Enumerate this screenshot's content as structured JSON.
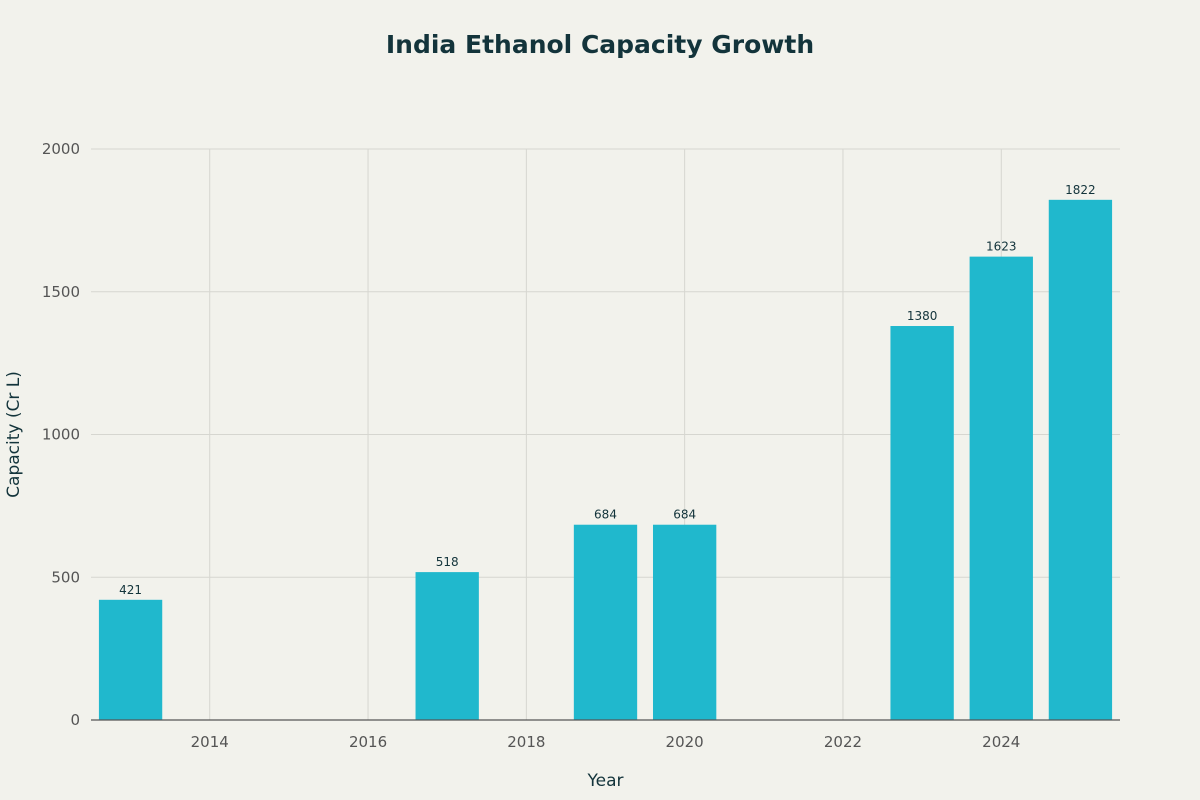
{
  "chart_data": {
    "type": "bar",
    "title": "India Ethanol Capacity Growth",
    "xlabel": "Year",
    "ylabel": "Capacity (Cr L)",
    "x": [
      2013,
      2017,
      2019,
      2020,
      2023,
      2024,
      2025
    ],
    "values": [
      421,
      518,
      684,
      684,
      1380,
      1623,
      1822
    ],
    "data_labels": [
      "421",
      "518",
      "684",
      "684",
      "1380",
      "1623",
      "1822"
    ],
    "xlim": [
      2012.5,
      2025.5
    ],
    "ylim": [
      0,
      2000
    ],
    "x_ticks": [
      2014,
      2016,
      2018,
      2020,
      2022,
      2024
    ],
    "y_ticks": [
      0,
      500,
      1000,
      1500,
      2000
    ],
    "grid": true,
    "bar_color": "#20b8cd"
  }
}
